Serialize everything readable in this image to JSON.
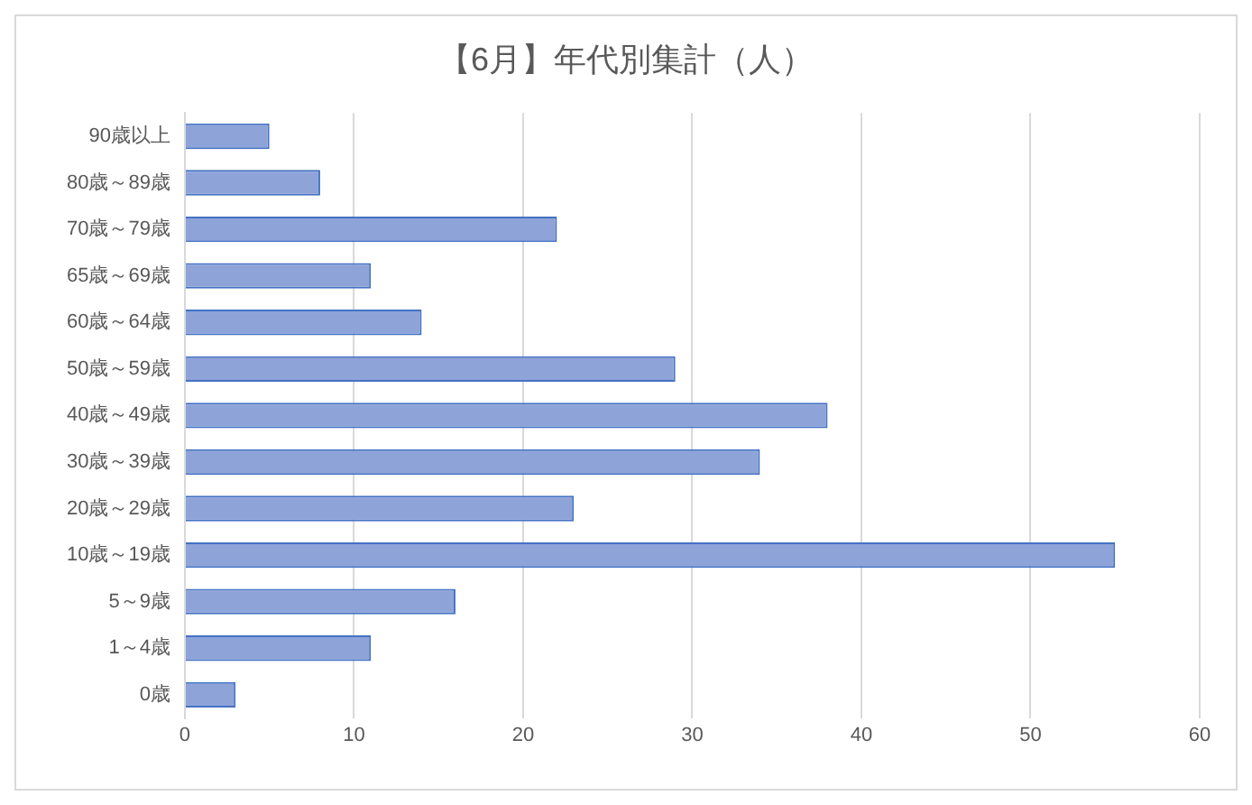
{
  "chart_data": {
    "type": "bar",
    "orientation": "horizontal",
    "title": "【6月】年代別集計（人）",
    "categories": [
      "90歳以上",
      "80歳～89歳",
      "70歳～79歳",
      "65歳～69歳",
      "60歳～64歳",
      "50歳～59歳",
      "40歳～49歳",
      "30歳～39歳",
      "20歳～29歳",
      "10歳～19歳",
      "5～9歳",
      "1～4歳",
      "0歳"
    ],
    "values": [
      5,
      8,
      22,
      11,
      14,
      29,
      38,
      34,
      23,
      55,
      16,
      11,
      3
    ],
    "color": "#8ea3d8",
    "xlim": [
      0,
      60
    ],
    "xticks": [
      0,
      10,
      20,
      30,
      40,
      50,
      60
    ],
    "grid": "x",
    "legend": false
  }
}
